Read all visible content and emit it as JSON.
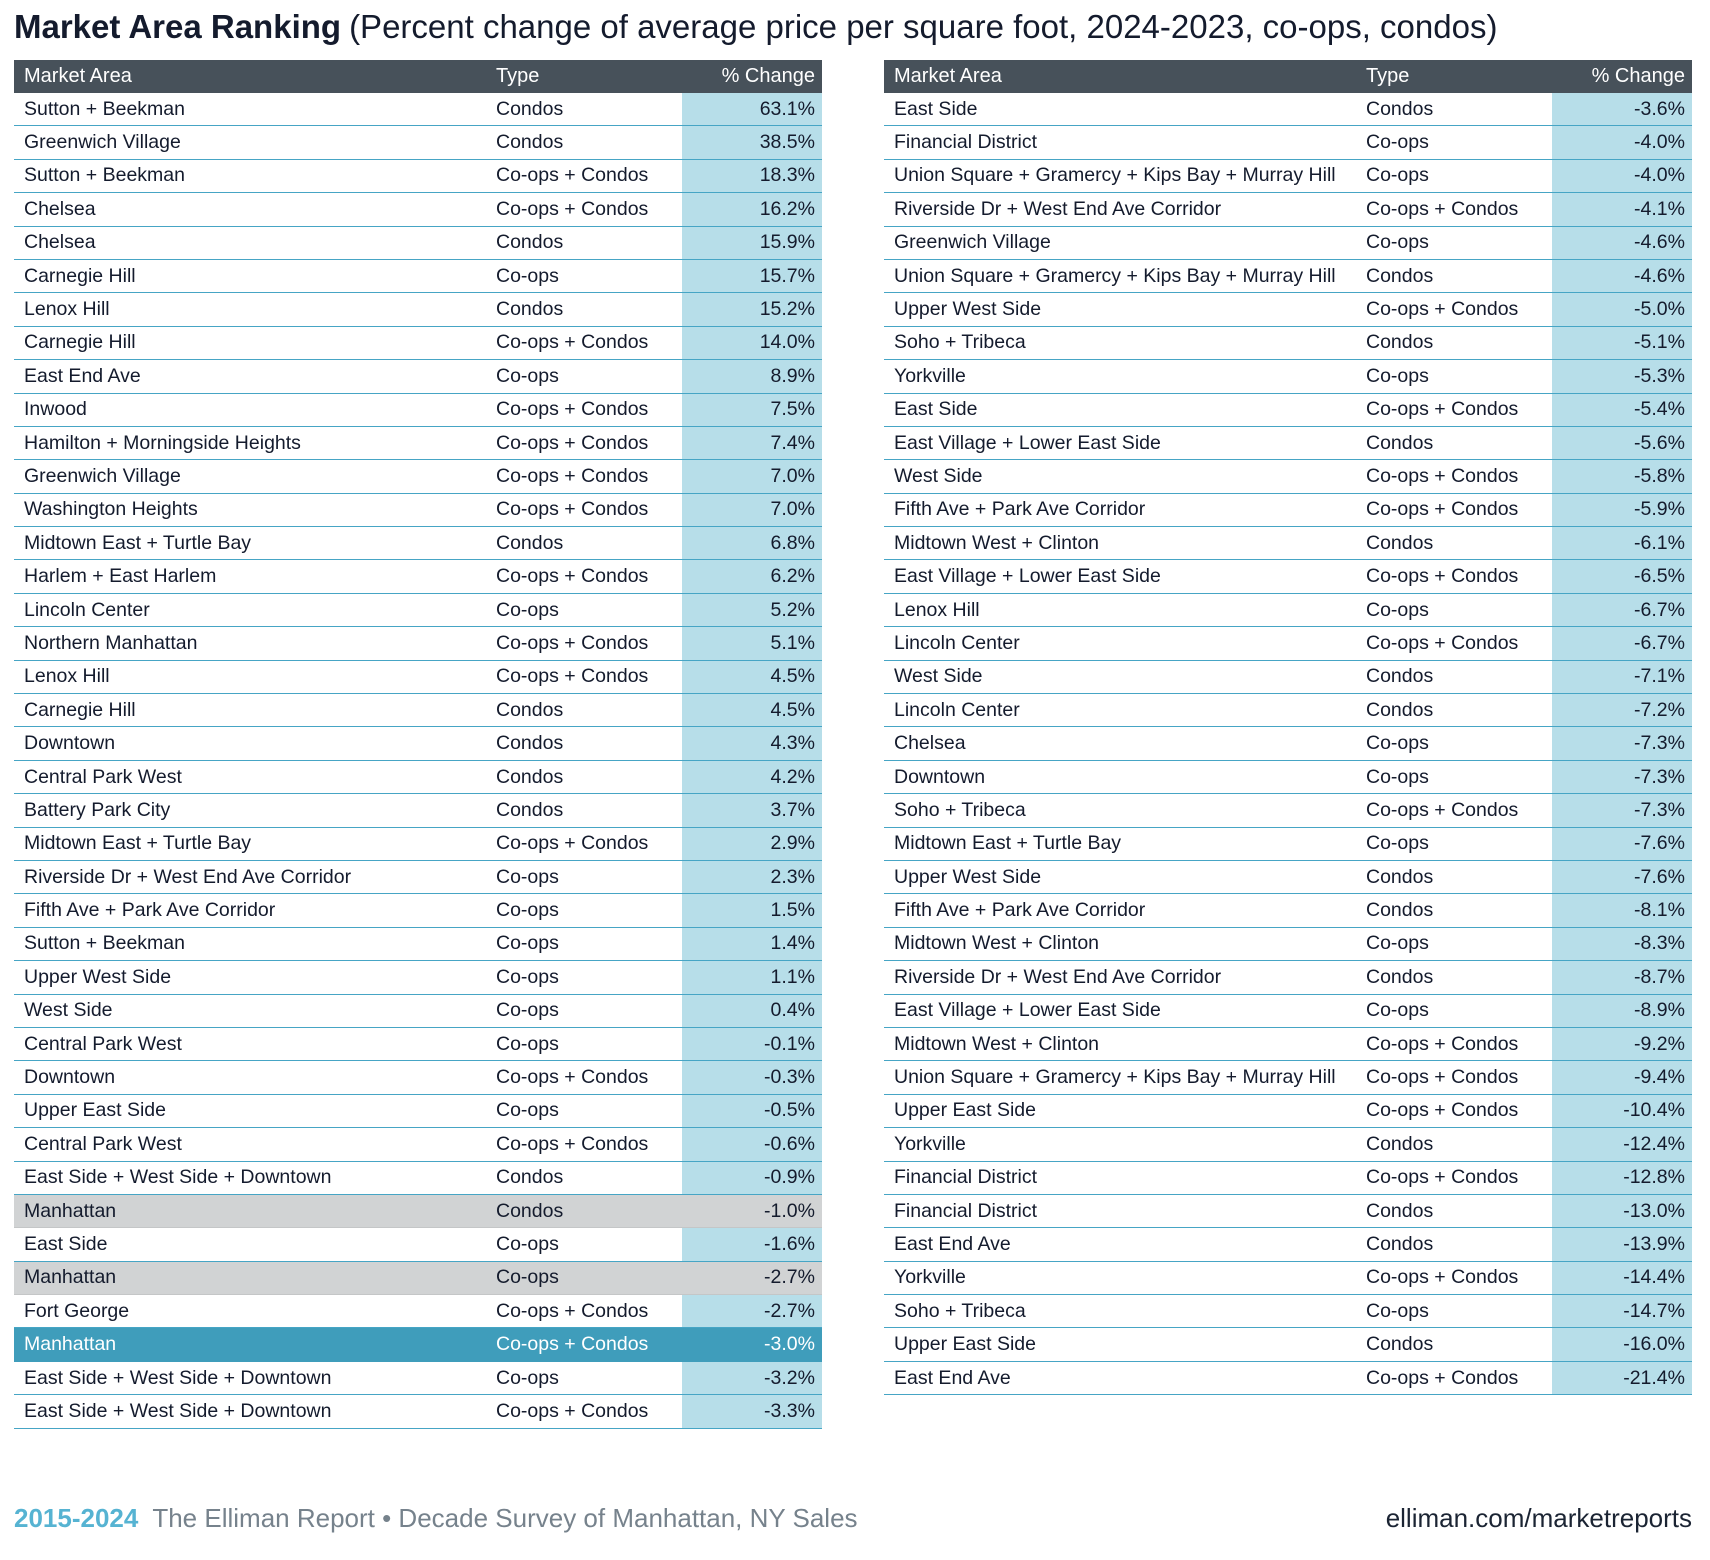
{
  "title": {
    "main": "Market Area Ranking",
    "subtitle": "(Percent change of average price per square foot, 2024-2023, co-ops, condos)"
  },
  "columns": [
    "Market Area",
    "Type",
    "% Change"
  ],
  "left_table": {
    "rows": [
      {
        "area": "Sutton + Beekman",
        "type": "Condos",
        "change": "63.1%"
      },
      {
        "area": "Greenwich Village",
        "type": "Condos",
        "change": "38.5%"
      },
      {
        "area": "Sutton + Beekman",
        "type": "Co-ops + Condos",
        "change": "18.3%"
      },
      {
        "area": "Chelsea",
        "type": "Co-ops + Condos",
        "change": "16.2%"
      },
      {
        "area": "Chelsea",
        "type": "Condos",
        "change": "15.9%"
      },
      {
        "area": "Carnegie Hill",
        "type": "Co-ops",
        "change": "15.7%"
      },
      {
        "area": "Lenox Hill",
        "type": "Condos",
        "change": "15.2%"
      },
      {
        "area": "Carnegie Hill",
        "type": "Co-ops + Condos",
        "change": "14.0%"
      },
      {
        "area": "East End Ave",
        "type": "Co-ops",
        "change": "8.9%"
      },
      {
        "area": "Inwood",
        "type": "Co-ops + Condos",
        "change": "7.5%"
      },
      {
        "area": "Hamilton + Morningside Heights",
        "type": "Co-ops + Condos",
        "change": "7.4%"
      },
      {
        "area": "Greenwich Village",
        "type": "Co-ops + Condos",
        "change": "7.0%"
      },
      {
        "area": "Washington Heights",
        "type": "Co-ops + Condos",
        "change": "7.0%"
      },
      {
        "area": "Midtown East + Turtle Bay",
        "type": "Condos",
        "change": "6.8%"
      },
      {
        "area": "Harlem + East Harlem",
        "type": "Co-ops + Condos",
        "change": "6.2%"
      },
      {
        "area": "Lincoln Center",
        "type": "Co-ops",
        "change": "5.2%"
      },
      {
        "area": "Northern Manhattan",
        "type": "Co-ops + Condos",
        "change": "5.1%"
      },
      {
        "area": "Lenox Hill",
        "type": "Co-ops + Condos",
        "change": "4.5%"
      },
      {
        "area": "Carnegie Hill",
        "type": "Condos",
        "change": "4.5%"
      },
      {
        "area": "Downtown",
        "type": "Condos",
        "change": "4.3%"
      },
      {
        "area": "Central Park West",
        "type": "Condos",
        "change": "4.2%"
      },
      {
        "area": "Battery Park City",
        "type": "Condos",
        "change": "3.7%"
      },
      {
        "area": "Midtown East + Turtle Bay",
        "type": "Co-ops + Condos",
        "change": "2.9%"
      },
      {
        "area": "Riverside Dr + West End Ave Corridor",
        "type": "Co-ops",
        "change": "2.3%"
      },
      {
        "area": "Fifth Ave + Park Ave Corridor",
        "type": "Co-ops",
        "change": "1.5%"
      },
      {
        "area": "Sutton + Beekman",
        "type": "Co-ops",
        "change": "1.4%"
      },
      {
        "area": "Upper West Side",
        "type": "Co-ops",
        "change": "1.1%"
      },
      {
        "area": "West Side",
        "type": "Co-ops",
        "change": "0.4%"
      },
      {
        "area": "Central Park West",
        "type": "Co-ops",
        "change": "-0.1%"
      },
      {
        "area": "Downtown",
        "type": "Co-ops + Condos",
        "change": "-0.3%"
      },
      {
        "area": "Upper East Side",
        "type": "Co-ops",
        "change": "-0.5%"
      },
      {
        "area": "Central Park West",
        "type": "Co-ops + Condos",
        "change": "-0.6%"
      },
      {
        "area": "East Side + West Side + Downtown",
        "type": "Condos",
        "change": "-0.9%"
      },
      {
        "area": "Manhattan",
        "type": "Condos",
        "change": "-1.0%",
        "highlight": "gray"
      },
      {
        "area": "East Side",
        "type": "Co-ops",
        "change": "-1.6%"
      },
      {
        "area": "Manhattan",
        "type": "Co-ops",
        "change": "-2.7%",
        "highlight": "gray"
      },
      {
        "area": "Fort George",
        "type": "Co-ops + Condos",
        "change": "-2.7%"
      },
      {
        "area": "Manhattan",
        "type": "Co-ops + Condos",
        "change": "-3.0%",
        "highlight": "teal"
      },
      {
        "area": "East Side + West Side + Downtown",
        "type": "Co-ops",
        "change": "-3.2%"
      },
      {
        "area": "East Side + West Side + Downtown",
        "type": "Co-ops + Condos",
        "change": "-3.3%"
      }
    ]
  },
  "right_table": {
    "rows": [
      {
        "area": "East Side",
        "type": "Condos",
        "change": "-3.6%"
      },
      {
        "area": "Financial District",
        "type": "Co-ops",
        "change": "-4.0%"
      },
      {
        "area": "Union Square + Gramercy + Kips Bay + Murray Hill",
        "type": "Co-ops",
        "change": "-4.0%"
      },
      {
        "area": "Riverside Dr + West End Ave Corridor",
        "type": "Co-ops + Condos",
        "change": "-4.1%"
      },
      {
        "area": "Greenwich Village",
        "type": "Co-ops",
        "change": "-4.6%"
      },
      {
        "area": "Union Square + Gramercy + Kips Bay + Murray Hill",
        "type": "Condos",
        "change": "-4.6%"
      },
      {
        "area": "Upper West Side",
        "type": "Co-ops + Condos",
        "change": "-5.0%"
      },
      {
        "area": "Soho + Tribeca",
        "type": "Condos",
        "change": "-5.1%"
      },
      {
        "area": "Yorkville",
        "type": "Co-ops",
        "change": "-5.3%"
      },
      {
        "area": "East Side",
        "type": "Co-ops + Condos",
        "change": "-5.4%"
      },
      {
        "area": "East Village + Lower East Side",
        "type": "Condos",
        "change": "-5.6%"
      },
      {
        "area": "West Side",
        "type": "Co-ops + Condos",
        "change": "-5.8%"
      },
      {
        "area": "Fifth Ave + Park Ave Corridor",
        "type": "Co-ops + Condos",
        "change": "-5.9%"
      },
      {
        "area": "Midtown West + Clinton",
        "type": "Condos",
        "change": "-6.1%"
      },
      {
        "area": "East Village + Lower East Side",
        "type": "Co-ops + Condos",
        "change": "-6.5%"
      },
      {
        "area": "Lenox Hill",
        "type": "Co-ops",
        "change": "-6.7%"
      },
      {
        "area": "Lincoln Center",
        "type": "Co-ops + Condos",
        "change": "-6.7%"
      },
      {
        "area": "West Side",
        "type": "Condos",
        "change": "-7.1%"
      },
      {
        "area": "Lincoln Center",
        "type": "Condos",
        "change": "-7.2%"
      },
      {
        "area": "Chelsea",
        "type": "Co-ops",
        "change": "-7.3%"
      },
      {
        "area": "Downtown",
        "type": "Co-ops",
        "change": "-7.3%"
      },
      {
        "area": "Soho + Tribeca",
        "type": "Co-ops + Condos",
        "change": "-7.3%"
      },
      {
        "area": "Midtown East + Turtle Bay",
        "type": "Co-ops",
        "change": "-7.6%"
      },
      {
        "area": "Upper West Side",
        "type": "Condos",
        "change": "-7.6%"
      },
      {
        "area": "Fifth Ave + Park Ave Corridor",
        "type": "Condos",
        "change": "-8.1%"
      },
      {
        "area": "Midtown West + Clinton",
        "type": "Co-ops",
        "change": "-8.3%"
      },
      {
        "area": "Riverside Dr + West End Ave Corridor",
        "type": "Condos",
        "change": "-8.7%"
      },
      {
        "area": "East Village + Lower East Side",
        "type": "Co-ops",
        "change": "-8.9%"
      },
      {
        "area": "Midtown West + Clinton",
        "type": "Co-ops + Condos",
        "change": "-9.2%"
      },
      {
        "area": "Union Square + Gramercy + Kips Bay + Murray Hill",
        "type": "Co-ops + Condos",
        "change": "-9.4%"
      },
      {
        "area": "Upper East Side",
        "type": "Co-ops + Condos",
        "change": "-10.4%"
      },
      {
        "area": "Yorkville",
        "type": "Condos",
        "change": "-12.4%"
      },
      {
        "area": "Financial District",
        "type": "Co-ops + Condos",
        "change": "-12.8%"
      },
      {
        "area": "Financial District",
        "type": "Condos",
        "change": "-13.0%"
      },
      {
        "area": "East End Ave",
        "type": "Condos",
        "change": "-13.9%"
      },
      {
        "area": "Yorkville",
        "type": "Co-ops + Condos",
        "change": "-14.4%"
      },
      {
        "area": "Soho + Tribeca",
        "type": "Co-ops",
        "change": "-14.7%"
      },
      {
        "area": "Upper East Side",
        "type": "Condos",
        "change": "-16.0%"
      },
      {
        "area": "East End Ave",
        "type": "Co-ops + Condos",
        "change": "-21.4%"
      }
    ]
  },
  "footer": {
    "years": "2015-2024",
    "report": "The Elliman Report • Decade Survey of Manhattan, NY Sales",
    "link": "elliman.com/marketreports"
  },
  "colors": {
    "header_bg": "#47515a",
    "change_column_bg": "#b7dee9",
    "row_border": "#46a5c5",
    "gray_highlight": "#d1d3d4",
    "teal_highlight": "#3f9dbb",
    "footer_years": "#56b3d2",
    "footer_text": "#76828c",
    "text": "#141b2d"
  }
}
